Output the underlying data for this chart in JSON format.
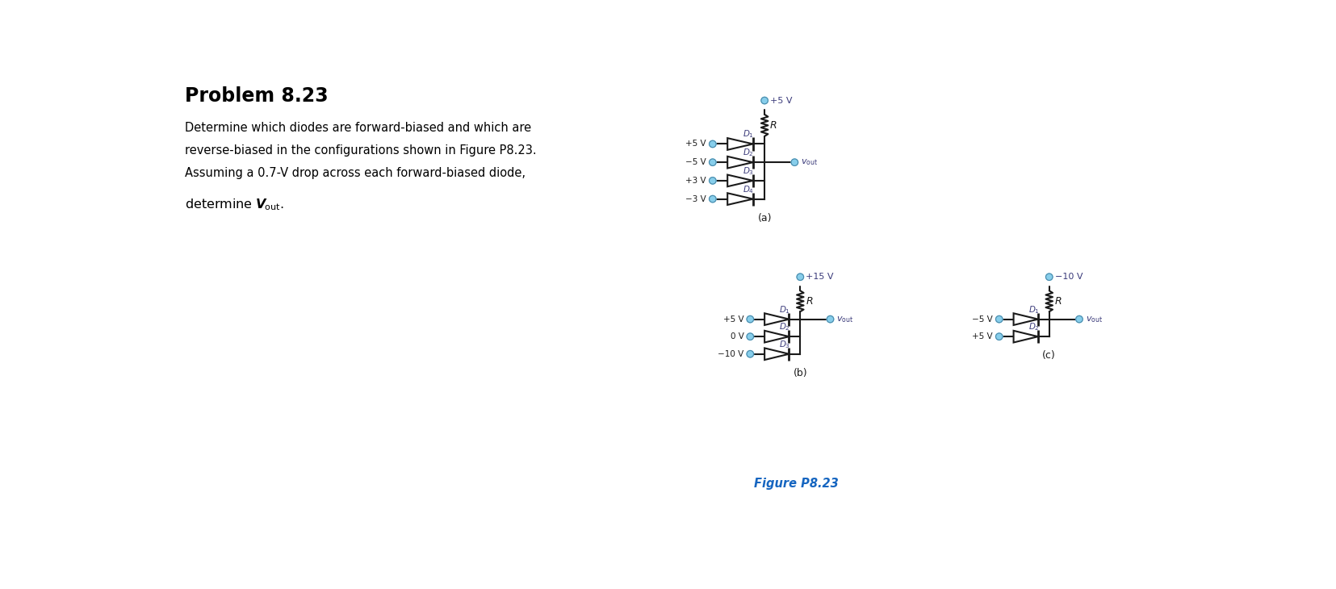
{
  "title": "Problem 8.23",
  "description_lines": [
    "Determine which diodes are forward-biased and which are",
    "reverse-biased in the configurations shown in Figure P8.23.",
    "Assuming a 0.7-V drop across each forward-biased diode,"
  ],
  "determine_line": "determine $\\boldsymbol{V}_{\\mathrm{out}}$.",
  "figure_label": "Figure P8.23",
  "bg_color": "#ffffff",
  "text_color": "#000000",
  "circuit_color": "#1a1a1a",
  "node_color": "#87CEEB",
  "label_color": "#3a3a7a",
  "figure_label_color": "#1565C0",
  "circ_a": {
    "label": "(a)",
    "supply_top": "+5 V",
    "resistor_label": "R",
    "diodes": [
      {
        "label": "D",
        "sub": "1",
        "input": "+5 V"
      },
      {
        "label": "D",
        "sub": "2",
        "input": "−5 V"
      },
      {
        "label": "D",
        "sub": "3",
        "input": "+3 V"
      },
      {
        "label": "D",
        "sub": "4",
        "input": "−3 V"
      }
    ],
    "vout_idx": 1
  },
  "circ_b": {
    "label": "(b)",
    "supply_top": "+15 V",
    "resistor_label": "R",
    "diodes": [
      {
        "label": "D",
        "sub": "1",
        "input": "+5 V"
      },
      {
        "label": "D",
        "sub": "2",
        "input": "0 V"
      },
      {
        "label": "D",
        "sub": "3",
        "input": "−10 V"
      }
    ],
    "vout_idx": 0
  },
  "circ_c": {
    "label": "(c)",
    "supply_top": "−10 V",
    "resistor_label": "R",
    "diodes": [
      {
        "label": "D",
        "sub": "1",
        "input": "−5 V"
      },
      {
        "label": "D",
        "sub": "2",
        "input": "+5 V"
      }
    ],
    "vout_idx": 0
  }
}
